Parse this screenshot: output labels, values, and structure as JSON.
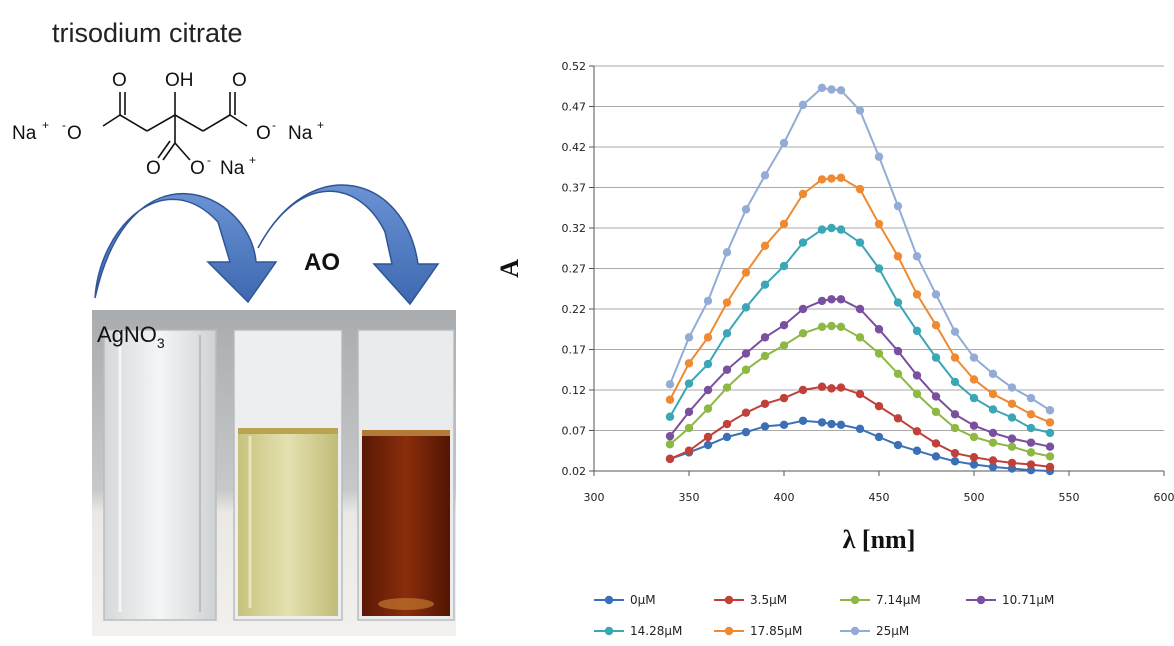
{
  "scheme": {
    "reagent_title": "trisodium citrate",
    "oh_label": "OH",
    "o_label": "O",
    "o_minus_label": "O",
    "minus_sign": "-",
    "na_label": "Na",
    "plus_sign": "+",
    "ao_label": "AO",
    "agno3_label": "AgNO",
    "agno3_subscript": "3",
    "arrow_color": "#4472c4",
    "cuvette_colors": [
      "#e6e8ea",
      "#d8d49a",
      "#7a2208"
    ]
  },
  "chart_data": {
    "type": "line",
    "title": "",
    "xlabel": "λ [nm]",
    "ylabel": "A",
    "xlim": [
      300,
      600
    ],
    "ylim": [
      0.02,
      0.52
    ],
    "xticks": [
      300,
      350,
      400,
      450,
      500,
      550,
      600
    ],
    "yticks": [
      "0.02",
      "0.07",
      "0.12",
      "0.17",
      "0.22",
      "0.27",
      "0.32",
      "0.37",
      "0.42",
      "0.47",
      "0.52"
    ],
    "grid": "horizontal",
    "legend_position": "bottom",
    "x": [
      340,
      350,
      360,
      370,
      380,
      390,
      400,
      410,
      420,
      425,
      430,
      440,
      450,
      460,
      470,
      480,
      490,
      500,
      510,
      520,
      530,
      540
    ],
    "series": [
      {
        "name": "0µM",
        "color": "#3b6fb6",
        "values": [
          0.035,
          0.043,
          0.052,
          0.062,
          0.068,
          0.075,
          0.077,
          0.082,
          0.08,
          0.078,
          0.077,
          0.072,
          0.062,
          0.052,
          0.045,
          0.038,
          0.032,
          0.028,
          0.025,
          0.023,
          0.021,
          0.02
        ]
      },
      {
        "name": "3.5µM",
        "color": "#c0403a",
        "values": [
          0.035,
          0.045,
          0.062,
          0.078,
          0.092,
          0.103,
          0.11,
          0.12,
          0.124,
          0.122,
          0.123,
          0.115,
          0.1,
          0.085,
          0.069,
          0.054,
          0.042,
          0.037,
          0.033,
          0.03,
          0.028,
          0.025
        ]
      },
      {
        "name": "7.14µM",
        "color": "#8db843",
        "values": [
          0.053,
          0.073,
          0.097,
          0.123,
          0.145,
          0.162,
          0.175,
          0.19,
          0.198,
          0.199,
          0.198,
          0.185,
          0.165,
          0.14,
          0.115,
          0.093,
          0.073,
          0.062,
          0.055,
          0.05,
          0.043,
          0.038
        ]
      },
      {
        "name": "10.71µM",
        "color": "#7a4fa0",
        "values": [
          0.063,
          0.093,
          0.12,
          0.145,
          0.165,
          0.185,
          0.2,
          0.22,
          0.23,
          0.232,
          0.232,
          0.22,
          0.195,
          0.168,
          0.138,
          0.112,
          0.09,
          0.076,
          0.067,
          0.06,
          0.055,
          0.05
        ]
      },
      {
        "name": "14.28µM",
        "color": "#3ba6b5",
        "values": [
          0.087,
          0.128,
          0.152,
          0.19,
          0.222,
          0.25,
          0.273,
          0.302,
          0.318,
          0.32,
          0.318,
          0.302,
          0.27,
          0.228,
          0.193,
          0.16,
          0.13,
          0.11,
          0.096,
          0.086,
          0.073,
          0.067
        ]
      },
      {
        "name": "17.85µM",
        "color": "#ef8a33",
        "values": [
          0.108,
          0.153,
          0.185,
          0.228,
          0.265,
          0.298,
          0.325,
          0.362,
          0.38,
          0.381,
          0.382,
          0.368,
          0.325,
          0.285,
          0.238,
          0.2,
          0.16,
          0.133,
          0.115,
          0.103,
          0.09,
          0.08
        ]
      },
      {
        "name": "25µM",
        "color": "#93acd6",
        "values": [
          0.127,
          0.185,
          0.23,
          0.29,
          0.343,
          0.385,
          0.425,
          0.472,
          0.493,
          0.491,
          0.49,
          0.465,
          0.408,
          0.347,
          0.285,
          0.238,
          0.192,
          0.16,
          0.14,
          0.123,
          0.11,
          0.095
        ]
      }
    ]
  }
}
